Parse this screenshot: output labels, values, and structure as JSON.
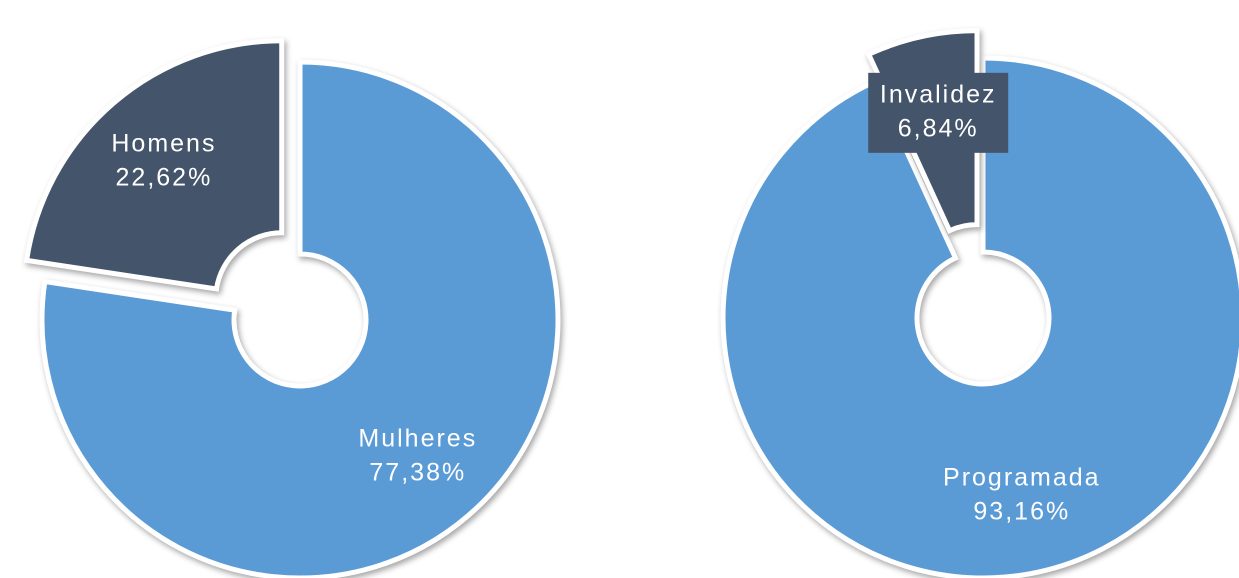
{
  "chart_data": [
    {
      "type": "donut",
      "categories": [
        "Mulheres",
        "Homens"
      ],
      "values": [
        77.38,
        22.62
      ],
      "value_labels": [
        "77,38%",
        "22,62%"
      ],
      "colors": [
        "#5b9bd5",
        "#44546a"
      ]
    },
    {
      "type": "donut",
      "categories": [
        "Programada",
        "Invalidez"
      ],
      "values": [
        93.16,
        6.84
      ],
      "value_labels": [
        "93,16%",
        "6,84%"
      ],
      "colors": [
        "#5b9bd5",
        "#44546a"
      ]
    }
  ]
}
